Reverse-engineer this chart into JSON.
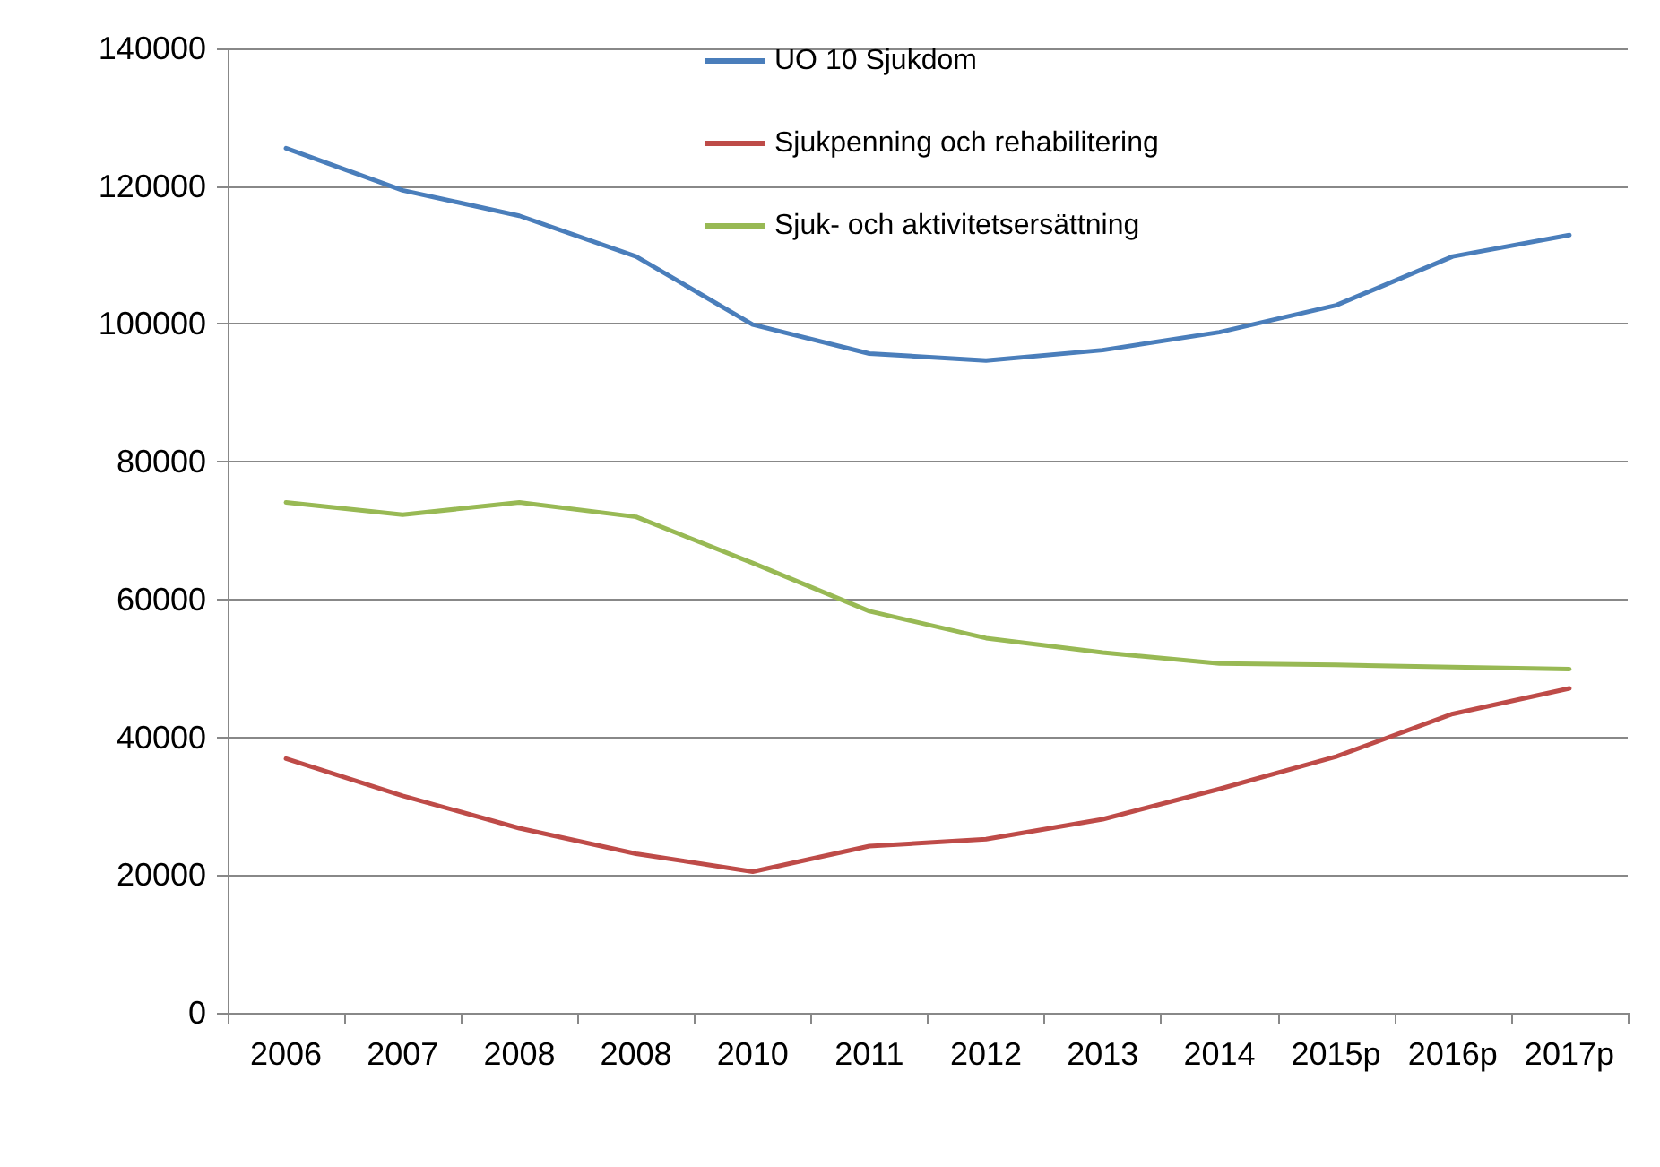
{
  "chart_data": {
    "type": "line",
    "categories": [
      "2006",
      "2007",
      "2008",
      "2008",
      "2010",
      "2011",
      "2012",
      "2013",
      "2014",
      "2015p",
      "2016p",
      "2017p"
    ],
    "series": [
      {
        "name": "UO 10 Sjukdom",
        "color": "#4a7ebb",
        "values": [
          125500,
          119400,
          115700,
          109800,
          99900,
          95700,
          94700,
          96200,
          98800,
          102700,
          109800,
          112900
        ]
      },
      {
        "name": "Sjukpenning och rehabilitering",
        "color": "#be4b48",
        "values": [
          36900,
          31500,
          26800,
          23100,
          20500,
          24200,
          25200,
          28100,
          32500,
          37200,
          43400,
          47100
        ]
      },
      {
        "name": "Sjuk- och aktivitetsersättning",
        "color": "#98b954",
        "values": [
          74100,
          72300,
          74100,
          72000,
          65300,
          58300,
          54400,
          52300,
          50700,
          50500,
          50200,
          49900
        ]
      }
    ],
    "ylim": [
      0,
      140000
    ],
    "yticks": [
      0,
      20000,
      40000,
      60000,
      80000,
      100000,
      120000,
      140000
    ],
    "grid": "y",
    "legend": "top",
    "marker": "none",
    "line_style": "solid"
  }
}
